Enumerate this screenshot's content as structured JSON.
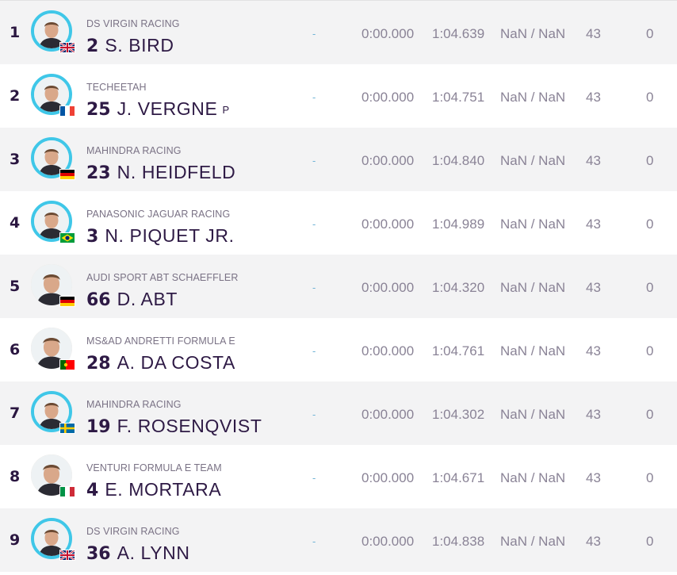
{
  "rows": [
    {
      "pos": "1",
      "team": "DS VIRGIN RACING",
      "number": "2",
      "name": "S. BIRD",
      "pit": "",
      "dash": "-",
      "gap": "0:00.000",
      "best": "1:04.639",
      "speed": "NaN / NaN",
      "laps": "43",
      "pits": "0",
      "flag": "flag-uk",
      "ring": true
    },
    {
      "pos": "2",
      "team": "TECHEETAH",
      "number": "25",
      "name": "J. VERGNE",
      "pit": "P",
      "dash": "-",
      "gap": "0:00.000",
      "best": "1:04.751",
      "speed": "NaN / NaN",
      "laps": "43",
      "pits": "0",
      "flag": "flag-france",
      "ring": true
    },
    {
      "pos": "3",
      "team": "MAHINDRA RACING",
      "number": "23",
      "name": "N. HEIDFELD",
      "pit": "",
      "dash": "-",
      "gap": "0:00.000",
      "best": "1:04.840",
      "speed": "NaN / NaN",
      "laps": "43",
      "pits": "0",
      "flag": "flag-germany",
      "ring": true
    },
    {
      "pos": "4",
      "team": "PANASONIC JAGUAR RACING",
      "number": "3",
      "name": "N. PIQUET JR.",
      "pit": "",
      "dash": "-",
      "gap": "0:00.000",
      "best": "1:04.989",
      "speed": "NaN / NaN",
      "laps": "43",
      "pits": "0",
      "flag": "flag-brazil",
      "ring": true
    },
    {
      "pos": "5",
      "team": "AUDI SPORT ABT SCHAEFFLER",
      "number": "66",
      "name": "D. ABT",
      "pit": "",
      "dash": "-",
      "gap": "0:00.000",
      "best": "1:04.320",
      "speed": "NaN / NaN",
      "laps": "43",
      "pits": "0",
      "flag": "flag-germany",
      "ring": false
    },
    {
      "pos": "6",
      "team": "MS&AD ANDRETTI FORMULA E",
      "number": "28",
      "name": "A. DA COSTA",
      "pit": "",
      "dash": "-",
      "gap": "0:00.000",
      "best": "1:04.761",
      "speed": "NaN / NaN",
      "laps": "43",
      "pits": "0",
      "flag": "flag-portugal",
      "ring": false
    },
    {
      "pos": "7",
      "team": "MAHINDRA RACING",
      "number": "19",
      "name": "F. ROSENQVIST",
      "pit": "",
      "dash": "-",
      "gap": "0:00.000",
      "best": "1:04.302",
      "speed": "NaN / NaN",
      "laps": "43",
      "pits": "0",
      "flag": "flag-sweden",
      "ring": true
    },
    {
      "pos": "8",
      "team": "VENTURI FORMULA E TEAM",
      "number": "4",
      "name": "E. MORTARA",
      "pit": "",
      "dash": "-",
      "gap": "0:00.000",
      "best": "1:04.671",
      "speed": "NaN / NaN",
      "laps": "43",
      "pits": "0",
      "flag": "flag-italy",
      "ring": false
    },
    {
      "pos": "9",
      "team": "DS VIRGIN RACING",
      "number": "36",
      "name": "A. LYNN",
      "pit": "",
      "dash": "-",
      "gap": "0:00.000",
      "best": "1:04.838",
      "speed": "NaN / NaN",
      "laps": "43",
      "pits": "0",
      "flag": "flag-uk",
      "ring": true
    }
  ]
}
